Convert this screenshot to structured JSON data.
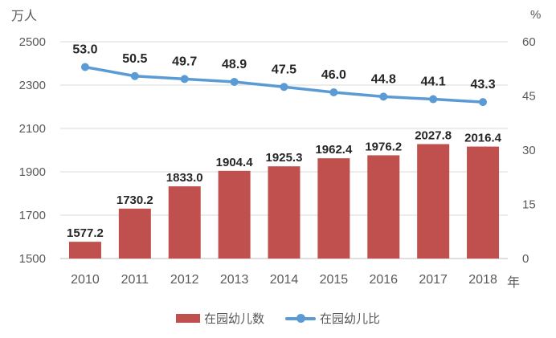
{
  "chart_data": {
    "type": "combo",
    "categories": [
      "2010",
      "2011",
      "2012",
      "2013",
      "2014",
      "2015",
      "2016",
      "2017",
      "2018"
    ],
    "series": [
      {
        "name": "在园幼儿数",
        "type": "bar",
        "axis": "left",
        "color": "#C0504D",
        "values": [
          1577.2,
          1730.2,
          1833.0,
          1904.4,
          1925.3,
          1962.4,
          1976.2,
          2027.8,
          2016.4
        ]
      },
      {
        "name": "在园幼儿比",
        "type": "line",
        "axis": "right",
        "color": "#5B9BD5",
        "values": [
          53.0,
          50.5,
          49.7,
          48.9,
          47.5,
          46.0,
          44.8,
          44.1,
          43.3
        ]
      }
    ],
    "left_axis": {
      "title": "万人",
      "min": 1500,
      "max": 2500,
      "step": 200,
      "ticks": [
        "2500",
        "2300",
        "2100",
        "1900",
        "1700",
        "1500"
      ]
    },
    "right_axis": {
      "title": "%",
      "min": 0,
      "max": 60,
      "step": 15,
      "ticks": [
        "60",
        "45",
        "30",
        "15",
        "0"
      ]
    },
    "x_axis": {
      "title": "年"
    },
    "grid": true,
    "legend_position": "bottom",
    "colors": {
      "background": "#FFFFFF",
      "gridline": "#D9D9D9",
      "baseline": "#BFBFBF",
      "axis_text": "#595959",
      "data_label": "#262626"
    }
  }
}
